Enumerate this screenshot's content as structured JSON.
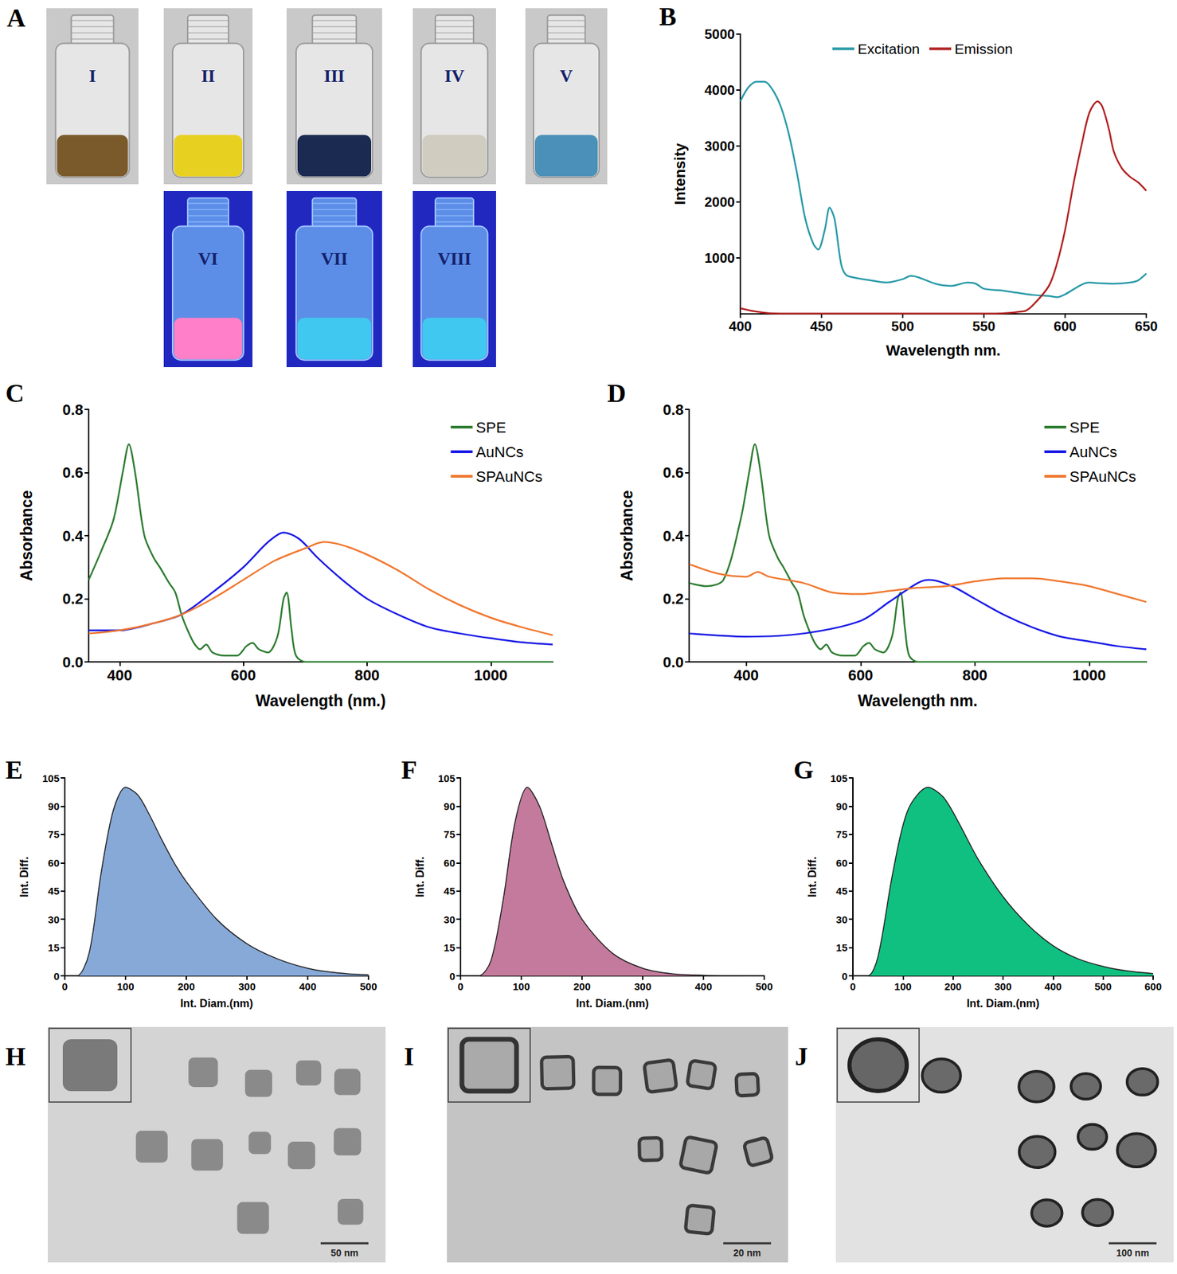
{
  "chart_data": [
    {
      "panel": "B",
      "type": "line",
      "x_label": "Wavelength nm.",
      "y_label": "Intensity",
      "xlim": [
        400,
        650
      ],
      "xticks": [
        400,
        450,
        500,
        550,
        600,
        650
      ],
      "ylim": [
        0,
        5000
      ],
      "yticks": [
        1000,
        2000,
        3000,
        4000,
        5000
      ],
      "grid": false,
      "legend": "top",
      "series": [
        {
          "name": "Excitation",
          "color": "#2a9aa8",
          "x": [
            400,
            405,
            410,
            415,
            420,
            425,
            430,
            435,
            440,
            445,
            448,
            452,
            455,
            458,
            462,
            465,
            470,
            480,
            490,
            500,
            505,
            510,
            520,
            530,
            540,
            545,
            550,
            560,
            570,
            580,
            590,
            595,
            600,
            610,
            615,
            620,
            630,
            640,
            645,
            650
          ],
          "values": [
            3800,
            4050,
            4150,
            4150,
            4000,
            3700,
            3200,
            2500,
            1700,
            1250,
            1150,
            1500,
            1900,
            1700,
            900,
            700,
            650,
            600,
            560,
            620,
            680,
            650,
            540,
            500,
            560,
            540,
            450,
            420,
            380,
            340,
            320,
            300,
            350,
            520,
            560,
            550,
            540,
            560,
            600,
            720
          ]
        },
        {
          "name": "Emission",
          "color": "#b22222",
          "x": [
            400,
            410,
            420,
            450,
            500,
            550,
            575,
            580,
            590,
            595,
            600,
            605,
            610,
            615,
            620,
            623,
            627,
            630,
            635,
            640,
            645,
            650
          ],
          "values": [
            100,
            40,
            10,
            5,
            5,
            5,
            50,
            150,
            500,
            900,
            1500,
            2300,
            3000,
            3600,
            3800,
            3700,
            3300,
            2900,
            2600,
            2450,
            2350,
            2200
          ]
        }
      ]
    },
    {
      "panel": "C",
      "type": "line",
      "x_label": "Wavelength (nm.)",
      "y_label": "Absorbance",
      "xlim": [
        350,
        1100
      ],
      "xticks": [
        400,
        600,
        800,
        1000
      ],
      "ylim": [
        0,
        0.8
      ],
      "yticks": [
        {
          "value": 0,
          "label": "0.0"
        },
        0.2,
        0.4,
        0.6,
        0.8
      ],
      "grid": false,
      "legend": "upper right",
      "series": [
        {
          "name": "SPE",
          "color": "#2e7d32",
          "x": [
            350,
            370,
            390,
            405,
            415,
            425,
            440,
            455,
            465,
            480,
            490,
            500,
            510,
            520,
            530,
            540,
            550,
            570,
            590,
            605,
            615,
            625,
            640,
            655,
            665,
            670,
            678,
            685,
            700,
            800,
            900,
            1000,
            1100
          ],
          "values": [
            0.26,
            0.35,
            0.45,
            0.6,
            0.69,
            0.6,
            0.4,
            0.33,
            0.3,
            0.25,
            0.22,
            0.15,
            0.1,
            0.06,
            0.04,
            0.055,
            0.03,
            0.02,
            0.02,
            0.05,
            0.06,
            0.04,
            0.03,
            0.08,
            0.2,
            0.22,
            0.1,
            0.02,
            0,
            0,
            0,
            0,
            0
          ]
        },
        {
          "name": "AuNCs",
          "color": "#1a1ae6",
          "x": [
            350,
            400,
            450,
            500,
            550,
            600,
            640,
            665,
            690,
            720,
            760,
            800,
            850,
            900,
            950,
            1000,
            1050,
            1100
          ],
          "values": [
            0.1,
            0.1,
            0.12,
            0.15,
            0.22,
            0.3,
            0.38,
            0.41,
            0.39,
            0.33,
            0.26,
            0.2,
            0.15,
            0.11,
            0.09,
            0.075,
            0.062,
            0.055
          ]
        },
        {
          "name": "SPAuNCs",
          "color": "#f07830",
          "x": [
            350,
            400,
            450,
            500,
            550,
            600,
            650,
            700,
            730,
            760,
            800,
            850,
            900,
            950,
            1000,
            1050,
            1100
          ],
          "values": [
            0.09,
            0.1,
            0.12,
            0.15,
            0.2,
            0.26,
            0.32,
            0.36,
            0.38,
            0.37,
            0.34,
            0.29,
            0.23,
            0.18,
            0.14,
            0.11,
            0.085
          ]
        }
      ]
    },
    {
      "panel": "D",
      "type": "line",
      "x_label": "Wavelength nm.",
      "y_label": "Absorbance",
      "xlim": [
        300,
        1100
      ],
      "xticks": [
        400,
        600,
        800,
        1000
      ],
      "ylim": [
        0,
        0.8
      ],
      "yticks": [
        {
          "value": 0,
          "label": "0.0"
        },
        0.2,
        0.4,
        0.6,
        0.8
      ],
      "grid": false,
      "legend": "upper right",
      "series": [
        {
          "name": "SPE",
          "color": "#2e7d32",
          "x": [
            300,
            330,
            360,
            390,
            405,
            415,
            425,
            440,
            455,
            465,
            480,
            490,
            500,
            510,
            520,
            530,
            540,
            550,
            570,
            590,
            605,
            615,
            625,
            640,
            655,
            665,
            670,
            678,
            685,
            700,
            800,
            900,
            1000,
            1100
          ],
          "values": [
            0.25,
            0.24,
            0.26,
            0.45,
            0.6,
            0.69,
            0.6,
            0.4,
            0.33,
            0.3,
            0.25,
            0.22,
            0.15,
            0.1,
            0.06,
            0.04,
            0.055,
            0.03,
            0.02,
            0.02,
            0.05,
            0.06,
            0.04,
            0.03,
            0.08,
            0.2,
            0.22,
            0.1,
            0.02,
            0,
            0,
            0,
            0,
            0
          ]
        },
        {
          "name": "AuNCs",
          "color": "#1a1ae6",
          "x": [
            300,
            400,
            500,
            600,
            650,
            700,
            720,
            760,
            800,
            850,
            900,
            950,
            1000,
            1050,
            1100
          ],
          "values": [
            0.09,
            0.08,
            0.09,
            0.13,
            0.19,
            0.25,
            0.26,
            0.24,
            0.2,
            0.15,
            0.11,
            0.08,
            0.065,
            0.05,
            0.04
          ]
        },
        {
          "name": "SPAuNCs",
          "color": "#f07830",
          "x": [
            300,
            350,
            400,
            420,
            440,
            500,
            550,
            600,
            650,
            700,
            750,
            800,
            850,
            900,
            950,
            1000,
            1050,
            1100
          ],
          "values": [
            0.31,
            0.28,
            0.27,
            0.285,
            0.27,
            0.25,
            0.22,
            0.215,
            0.225,
            0.235,
            0.24,
            0.255,
            0.265,
            0.265,
            0.255,
            0.24,
            0.215,
            0.19
          ]
        }
      ]
    },
    {
      "panel": "E",
      "type": "area",
      "x_label": "Int. Diam.(nm)",
      "y_label": "Int. Diff.",
      "color": "#87a9d8",
      "xlim": [
        0,
        500
      ],
      "xticks": [
        0,
        100,
        200,
        300,
        400,
        500
      ],
      "ylim": [
        0,
        105
      ],
      "yticks": [
        0,
        15,
        30,
        45,
        60,
        75,
        90,
        105
      ],
      "grid": false,
      "x": [
        0,
        20,
        40,
        60,
        80,
        100,
        120,
        140,
        160,
        180,
        200,
        250,
        300,
        350,
        400,
        450,
        500
      ],
      "values": [
        0,
        0,
        12,
        55,
        88,
        100,
        96,
        85,
        72,
        60,
        50,
        30,
        17,
        9,
        4,
        1.5,
        0.5
      ]
    },
    {
      "panel": "F",
      "type": "area",
      "x_label": "Int. Diam.(nm)",
      "y_label": "Int. Diff.",
      "color": "#c47a9c",
      "xlim": [
        0,
        500
      ],
      "xticks": [
        0,
        100,
        200,
        300,
        400,
        500
      ],
      "ylim": [
        0,
        105
      ],
      "yticks": [
        0,
        15,
        30,
        45,
        60,
        75,
        90,
        105
      ],
      "grid": false,
      "x": [
        0,
        30,
        50,
        70,
        90,
        110,
        130,
        150,
        170,
        200,
        250,
        300,
        350,
        400,
        500
      ],
      "values": [
        0,
        0,
        8,
        40,
        82,
        100,
        90,
        70,
        50,
        30,
        12,
        4,
        1,
        0.3,
        0
      ]
    },
    {
      "panel": "G",
      "type": "area",
      "x_label": "Int. Diam.(nm)",
      "y_label": "Int. Diff.",
      "color": "#10c080",
      "xlim": [
        0,
        600
      ],
      "xticks": [
        0,
        100,
        200,
        300,
        400,
        500,
        600
      ],
      "ylim": [
        0,
        105
      ],
      "yticks": [
        0,
        15,
        30,
        45,
        60,
        75,
        90,
        105
      ],
      "grid": false,
      "x": [
        0,
        30,
        50,
        80,
        110,
        150,
        180,
        210,
        250,
        300,
        350,
        400,
        450,
        500,
        550,
        600
      ],
      "values": [
        0,
        0,
        10,
        55,
        88,
        100,
        95,
        82,
        62,
        42,
        27,
        16,
        9,
        5,
        2.5,
        1.2
      ]
    }
  ],
  "photos": {
    "panel": "A",
    "daylight": [
      {
        "label": "I",
        "color": "#7a5a2a"
      },
      {
        "label": "II",
        "color": "#e8d020"
      },
      {
        "label": "III",
        "color": "#1a2a50"
      },
      {
        "label": "IV",
        "color": "#d0ccc0"
      },
      {
        "label": "V",
        "color": "#4a90b8"
      }
    ],
    "uv": [
      {
        "label": "VI",
        "color": "#ff80c8"
      },
      {
        "label": "VII",
        "color": "#40c8f0"
      },
      {
        "label": "VIII",
        "color": "#40c8f0"
      }
    ]
  },
  "tem": [
    {
      "panel": "H",
      "scale_bar": "50 nm"
    },
    {
      "panel": "I",
      "scale_bar": "20 nm"
    },
    {
      "panel": "J",
      "scale_bar": "100 nm"
    }
  ]
}
